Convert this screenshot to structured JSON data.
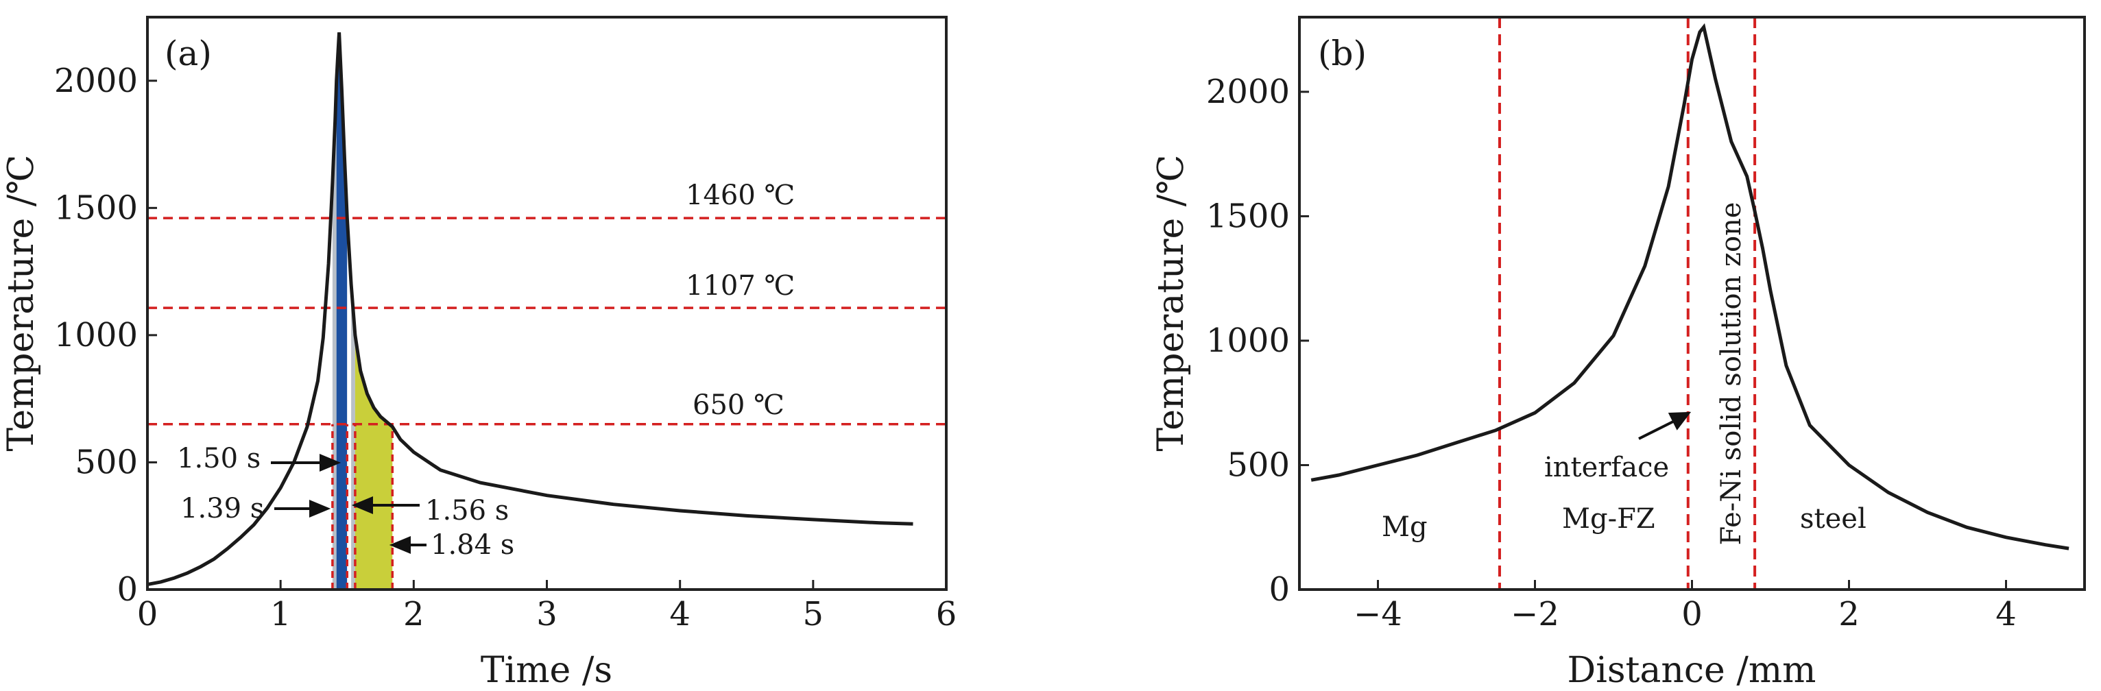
{
  "colors": {
    "curve": "#1a1a1a",
    "guide": "#d42020",
    "fill_blue": "#1b4fa0",
    "fill_yellow": "#c9cf3a",
    "fill_gray": "#b9c0c8",
    "fill_white": "#ffffff"
  },
  "chart_data": [
    {
      "panel": "(a)",
      "type": "line",
      "xlabel": "Time /s",
      "ylabel": "Temperature /℃",
      "xlim": [
        0,
        6
      ],
      "ylim": [
        0,
        2250
      ],
      "xticks": [
        0,
        1,
        2,
        3,
        4,
        5,
        6
      ],
      "yticks": [
        0,
        500,
        1000,
        1500,
        2000
      ],
      "grid": false,
      "series": [
        {
          "x": [
            0,
            0.1,
            0.2,
            0.3,
            0.4,
            0.5,
            0.6,
            0.7,
            0.8,
            0.9,
            1.0,
            1.1,
            1.2,
            1.28,
            1.32,
            1.36,
            1.39,
            1.41,
            1.42,
            1.43,
            1.44,
            1.46,
            1.48,
            1.5,
            1.53,
            1.56,
            1.6,
            1.65,
            1.7,
            1.75,
            1.84,
            1.9,
            2.0,
            2.2,
            2.5,
            3.0,
            3.5,
            4.0,
            4.5,
            5.0,
            5.5,
            5.75
          ],
          "y": [
            20,
            30,
            45,
            65,
            90,
            120,
            160,
            205,
            255,
            320,
            400,
            500,
            640,
            820,
            990,
            1280,
            1600,
            1850,
            2000,
            2100,
            2190,
            1960,
            1700,
            1460,
            1200,
            1000,
            860,
            770,
            715,
            680,
            640,
            590,
            540,
            470,
            420,
            370,
            335,
            310,
            290,
            275,
            262,
            258
          ]
        }
      ],
      "hlines": [
        {
          "y": 1460,
          "label": "1460 ℃"
        },
        {
          "y": 1107,
          "label": "1107 ℃"
        },
        {
          "y": 650,
          "label": "650 ℃"
        }
      ],
      "vlines": [
        1.39,
        1.5,
        1.56,
        1.84
      ],
      "shaded_regions": [
        {
          "x": [
            1.42,
            1.5
          ],
          "color": "blue"
        },
        {
          "x": [
            1.56,
            1.84
          ],
          "color": "yellow"
        }
      ],
      "annotations": [
        "1.50 s",
        "1.39 s",
        "1.56 s",
        "1.84 s"
      ]
    },
    {
      "panel": "(b)",
      "type": "line",
      "xlabel": "Distance /mm",
      "ylabel": "Temperature /℃",
      "xlim": [
        -5,
        5
      ],
      "ylim": [
        0,
        2300
      ],
      "xticks": [
        -4,
        -2,
        0,
        2,
        4
      ],
      "yticks": [
        0,
        500,
        1000,
        1500,
        2000
      ],
      "grid": false,
      "series": [
        {
          "x": [
            -4.85,
            -4.5,
            -4.0,
            -3.5,
            -3.0,
            -2.5,
            -2.0,
            -1.5,
            -1.0,
            -0.6,
            -0.3,
            -0.1,
            0.0,
            0.1,
            0.15,
            0.3,
            0.5,
            0.7,
            0.8,
            0.9,
            1.0,
            1.2,
            1.5,
            2.0,
            2.5,
            3.0,
            3.5,
            4.0,
            4.5,
            4.8
          ],
          "y": [
            440,
            460,
            500,
            540,
            590,
            640,
            710,
            830,
            1020,
            1300,
            1620,
            1950,
            2130,
            2240,
            2260,
            2050,
            1800,
            1660,
            1520,
            1370,
            1200,
            900,
            660,
            500,
            390,
            310,
            250,
            210,
            180,
            165
          ]
        }
      ],
      "vlines": [
        -2.45,
        -0.05,
        0.8
      ],
      "regions": [
        "Mg",
        "interface",
        "Mg-FZ",
        "Fe-Ni solid solution zone",
        "steel"
      ]
    }
  ]
}
